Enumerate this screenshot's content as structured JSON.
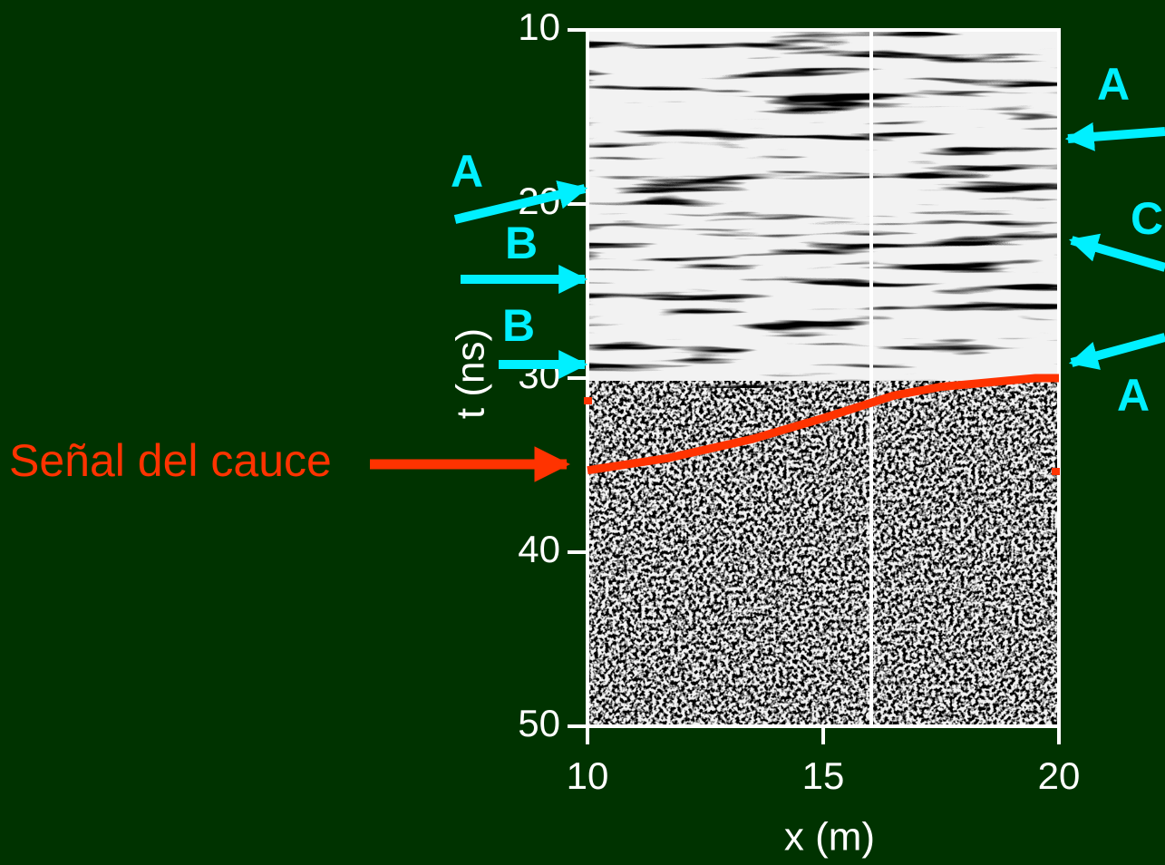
{
  "chart_data": {
    "type": "line",
    "xlabel": "x (m)",
    "ylabel": "t (ns)",
    "xlim": [
      10,
      20
    ],
    "xticks": [
      10,
      15,
      20
    ],
    "ylim": [
      10,
      50
    ],
    "yticks": [
      10,
      20,
      30,
      40,
      50
    ],
    "y_inverted": true,
    "series": [
      {
        "name": "Señal del cauce",
        "color": "#ff3300",
        "x": [
          10,
          11.7,
          13.5,
          15,
          16.5,
          17.5,
          19.5,
          20
        ],
        "values": [
          35.3,
          34.6,
          33.5,
          32.3,
          31,
          30.5,
          30,
          30
        ]
      }
    ],
    "annotations": [
      "A",
      "A",
      "C",
      "B",
      "B",
      "A"
    ]
  }
}
